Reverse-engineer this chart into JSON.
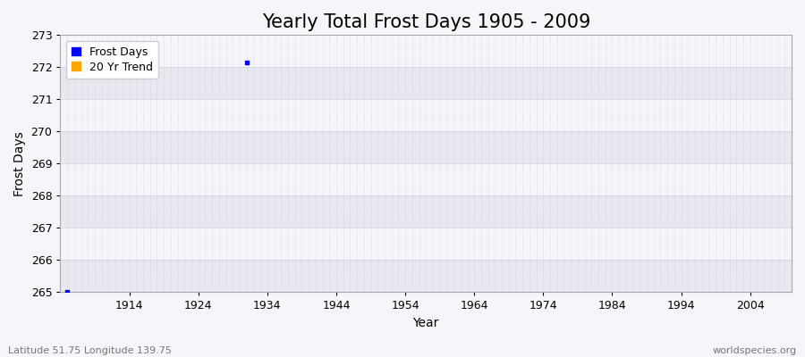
{
  "title": "Yearly Total Frost Days 1905 - 2009",
  "xlabel": "Year",
  "ylabel": "Frost Days",
  "xlim": [
    1904,
    2010
  ],
  "ylim": [
    265,
    273
  ],
  "yticks": [
    265,
    266,
    267,
    268,
    269,
    270,
    271,
    272,
    273
  ],
  "xticks": [
    1914,
    1924,
    1934,
    1944,
    1954,
    1964,
    1974,
    1984,
    1994,
    2004
  ],
  "data_points": [
    {
      "year": 1905,
      "value": 265.0
    },
    {
      "year": 1931,
      "value": 272.15
    }
  ],
  "point_color": "#0000ff",
  "trend_color": "#ffa500",
  "band_color_light": "#f5f5fa",
  "band_color_dark": "#e8e8f0",
  "background_color": "#f5f5fa",
  "grid_color": "#c8c8d8",
  "legend_labels": [
    "Frost Days",
    "20 Yr Trend"
  ],
  "legend_colors": [
    "#0000ff",
    "#ffa500"
  ],
  "bottom_left_text": "Latitude 51.75 Longitude 139.75",
  "bottom_right_text": "worldspecies.org",
  "title_fontsize": 15,
  "axis_fontsize": 10,
  "tick_fontsize": 9,
  "legend_fontsize": 9
}
